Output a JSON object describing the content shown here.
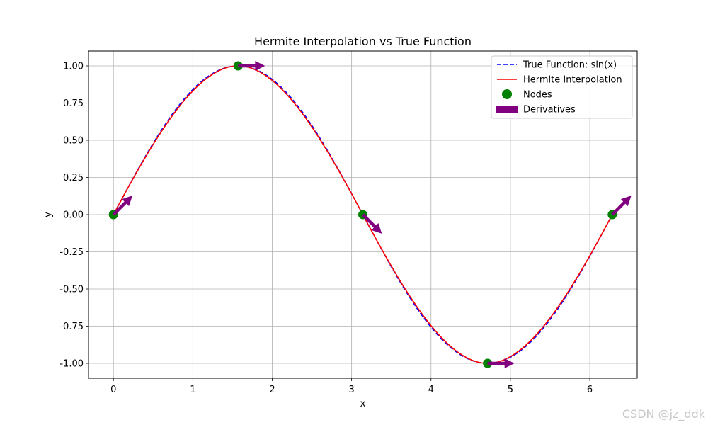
{
  "chart_data": {
    "type": "line",
    "title": "Hermite Interpolation vs True Function",
    "xlabel": "x",
    "ylabel": "y",
    "xlim": [
      -0.314,
      6.597
    ],
    "ylim": [
      -1.1,
      1.1
    ],
    "xticks": [
      0,
      1,
      2,
      3,
      4,
      5,
      6
    ],
    "xtick_labels": [
      "0",
      "1",
      "2",
      "3",
      "4",
      "5",
      "6"
    ],
    "yticks": [
      1.0,
      0.75,
      0.5,
      0.25,
      0.0,
      -0.25,
      -0.5,
      -0.75,
      -1.0
    ],
    "ytick_labels": [
      "1.00",
      "0.75",
      "0.50",
      "0.25",
      "0.00",
      "-0.25",
      "-0.50",
      "-0.75",
      "-1.00"
    ],
    "grid": true,
    "legend_position": "top-right",
    "series": [
      {
        "name": "True Function: sin(x)",
        "kind": "line",
        "style": "dashed",
        "color": "#0000ff",
        "function": "sin",
        "x_range": [
          0,
          6.2832
        ]
      },
      {
        "name": "Hermite Interpolation",
        "kind": "line",
        "style": "solid",
        "color": "#ff0000",
        "x_range": [
          0,
          6.2832
        ]
      },
      {
        "name": "Nodes",
        "kind": "scatter",
        "color": "#008000",
        "x": [
          0,
          1.5708,
          3.1416,
          4.7124,
          6.2832
        ],
        "y": [
          0,
          1,
          0,
          -1,
          0
        ]
      },
      {
        "name": "Derivatives",
        "kind": "quiver",
        "color": "#800080",
        "x": [
          0,
          1.5708,
          3.1416,
          4.7124,
          6.2832
        ],
        "y": [
          0,
          1,
          0,
          -1,
          0
        ],
        "dy": [
          1,
          0,
          -1,
          0,
          1
        ]
      }
    ]
  },
  "watermark": "CSDN @jz_ddk"
}
